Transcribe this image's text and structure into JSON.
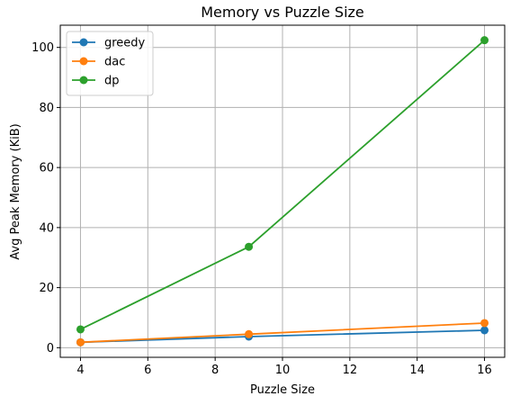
{
  "chart_data": {
    "type": "line",
    "title": "Memory vs Puzzle Size",
    "xlabel": "Puzzle Size",
    "ylabel": "Avg Peak Memory (KiB)",
    "x": [
      4,
      9,
      16
    ],
    "xlim": [
      3.4,
      16.6
    ],
    "ylim": [
      -3.2,
      107.4
    ],
    "xticks": [
      4,
      6,
      8,
      10,
      12,
      14,
      16
    ],
    "yticks": [
      0,
      20,
      40,
      60,
      80,
      100
    ],
    "grid": true,
    "legend_position": "top-left",
    "series": [
      {
        "name": "greedy",
        "color": "#1f77b4",
        "values": [
          1.8,
          3.7,
          5.8
        ]
      },
      {
        "name": "dac",
        "color": "#ff7f0e",
        "values": [
          1.8,
          4.5,
          8.2
        ]
      },
      {
        "name": "dp",
        "color": "#2ca02c",
        "values": [
          6.1,
          33.6,
          102.4
        ]
      }
    ]
  }
}
